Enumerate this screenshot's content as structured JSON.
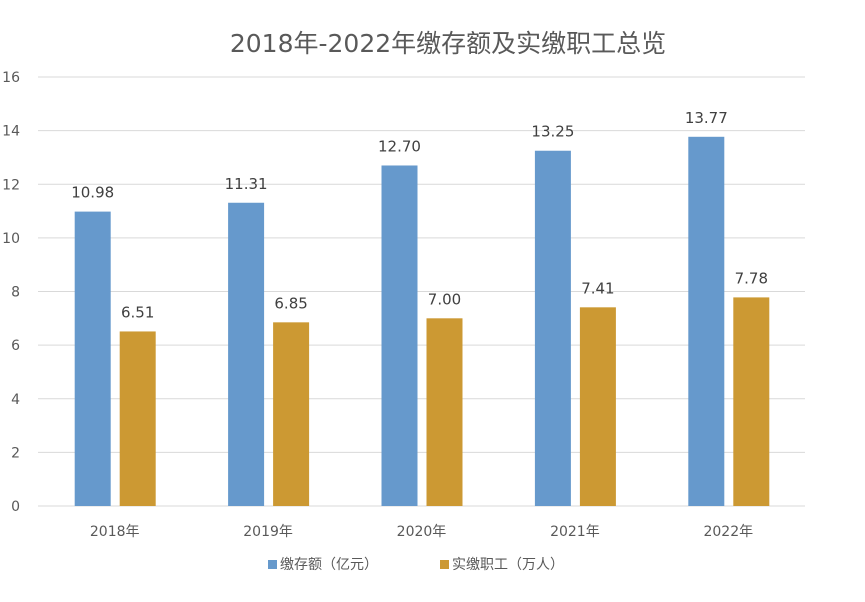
{
  "chart_data": {
    "type": "bar",
    "title": "2018年-2022年缴存额及实缴职工总览",
    "categories": [
      "2018年",
      "2019年",
      "2020年",
      "2021年",
      "2022年"
    ],
    "series": [
      {
        "name": "缴存额（亿元）",
        "values": [
          10.98,
          11.31,
          12.7,
          13.25,
          13.77
        ],
        "labels": [
          "10.98",
          "11.31",
          "12.70",
          "13.25",
          "13.77"
        ],
        "color": "#6699CC"
      },
      {
        "name": "实缴职工（万人）",
        "values": [
          6.51,
          6.85,
          7.0,
          7.41,
          7.78
        ],
        "labels": [
          "6.51",
          "6.85",
          "7.00",
          "7.41",
          "7.78"
        ],
        "color": "#CC9933"
      }
    ],
    "ylim": [
      0,
      16
    ],
    "yticks": [
      "0",
      "2",
      "4",
      "6",
      "8",
      "10",
      "12",
      "14",
      "16"
    ],
    "grid": true,
    "legend": "bottom"
  }
}
